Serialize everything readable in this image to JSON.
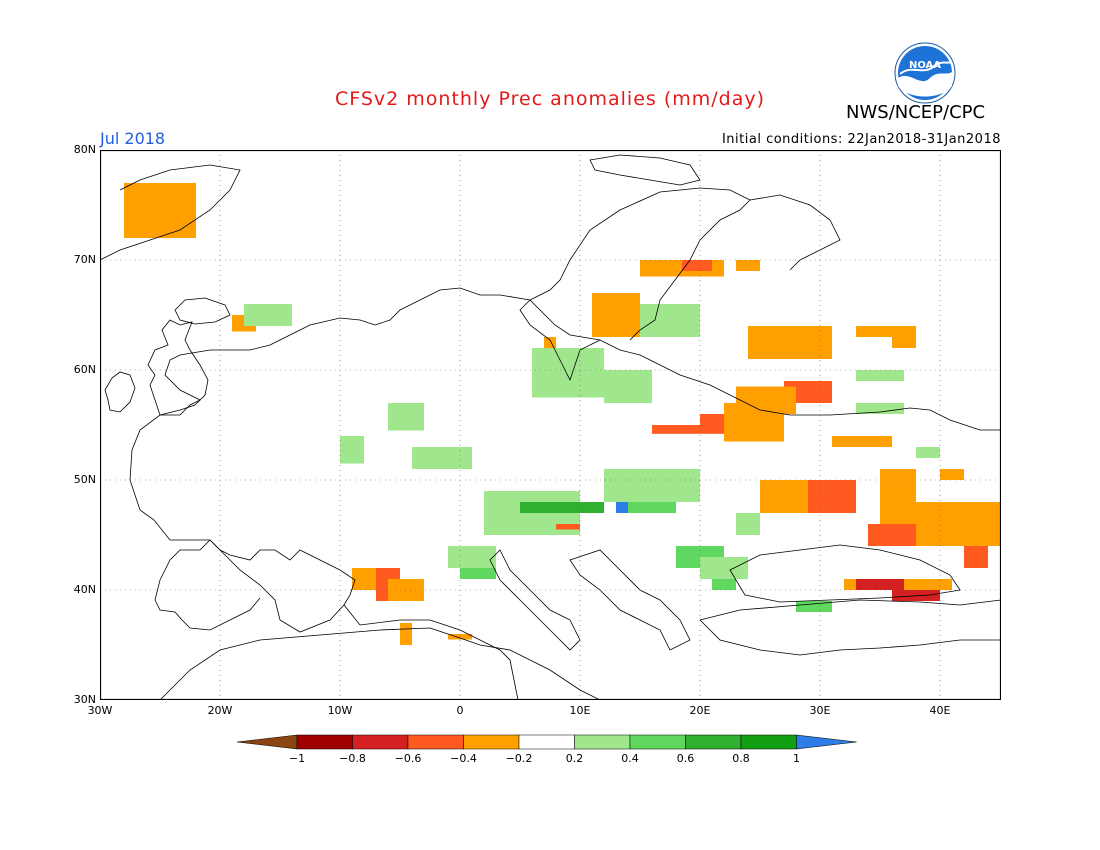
{
  "header": {
    "title": "CFSv2 monthly Prec anomalies (mm/day)",
    "agency": "NWS/NCEP/CPC",
    "logo_text": "NOAA",
    "month": "Jul 2018",
    "initial_conditions": "Initial conditions: 22Jan2018-31Jan2018"
  },
  "map": {
    "lon_range": [
      -30,
      45
    ],
    "lat_range": [
      30,
      80
    ],
    "lat_labels": [
      "80N",
      "70N",
      "60N",
      "50N",
      "40N",
      "30N"
    ],
    "lon_labels": [
      "30W",
      "20W",
      "10W",
      "0",
      "10E",
      "20E",
      "30E",
      "40E"
    ],
    "grid": "dotted"
  },
  "legend": {
    "ticks": [
      "-1",
      "-0.8",
      "-0.6",
      "-0.4",
      "-0.2",
      "0.2",
      "0.4",
      "0.6",
      "0.8",
      "1"
    ],
    "colors": {
      "lt_-1": "#8b4513",
      "-1_-0.8": "#a00000",
      "-0.8_-0.6": "#d42020",
      "-0.6_-0.4": "#ff5a1f",
      "-0.4_-0.2": "#ffa000",
      "-0.2_0.2": "#ffffff",
      "0.2_0.4": "#a0e68c",
      "0.4_0.6": "#60d860",
      "0.6_0.8": "#30b030",
      "0.8_1": "#12a012",
      "gt_1": "#2d7de6"
    }
  },
  "anomaly_regions": [
    {
      "lon": [
        -28,
        -22
      ],
      "lat": [
        72,
        77
      ],
      "v": -0.3
    },
    {
      "lon": [
        -19,
        -17
      ],
      "lat": [
        63.5,
        65
      ],
      "v": -0.3
    },
    {
      "lon": [
        -18,
        -14
      ],
      "lat": [
        64,
        66
      ],
      "v": 0.3
    },
    {
      "lon": [
        -10,
        -8
      ],
      "lat": [
        51.5,
        54
      ],
      "v": 0.3
    },
    {
      "lon": [
        -6,
        -3
      ],
      "lat": [
        54.5,
        57
      ],
      "v": 0.3
    },
    {
      "lon": [
        -4,
        1
      ],
      "lat": [
        51,
        53
      ],
      "v": 0.3
    },
    {
      "lon": [
        7,
        11
      ],
      "lat": [
        59,
        61.5
      ],
      "v": 0.5
    },
    {
      "lon": [
        6,
        12
      ],
      "lat": [
        57.5,
        62
      ],
      "v": 0.3
    },
    {
      "lon": [
        12,
        16
      ],
      "lat": [
        57,
        60
      ],
      "v": 0.3
    },
    {
      "lon": [
        14,
        20
      ],
      "lat": [
        63,
        66
      ],
      "v": 0.3
    },
    {
      "lon": [
        7,
        8
      ],
      "lat": [
        62,
        63
      ],
      "v": -0.3
    },
    {
      "lon": [
        11,
        15
      ],
      "lat": [
        63,
        67
      ],
      "v": -0.3
    },
    {
      "lon": [
        15,
        22
      ],
      "lat": [
        68.5,
        70
      ],
      "v": -0.3
    },
    {
      "lon": [
        18.5,
        21
      ],
      "lat": [
        69,
        70
      ],
      "v": -0.5
    },
    {
      "lon": [
        23,
        25
      ],
      "lat": [
        69,
        70
      ],
      "v": -0.3
    },
    {
      "lon": [
        24,
        31
      ],
      "lat": [
        61,
        64
      ],
      "v": -0.3
    },
    {
      "lon": [
        27,
        31
      ],
      "lat": [
        57,
        59
      ],
      "v": -0.5
    },
    {
      "lon": [
        23,
        28
      ],
      "lat": [
        56,
        58.5
      ],
      "v": -0.3
    },
    {
      "lon": [
        16,
        22
      ],
      "lat": [
        54.2,
        55
      ],
      "v": -0.5
    },
    {
      "lon": [
        20,
        23
      ],
      "lat": [
        55,
        56
      ],
      "v": -0.5
    },
    {
      "lon": [
        22,
        27
      ],
      "lat": [
        53.5,
        57
      ],
      "v": -0.3
    },
    {
      "lon": [
        31,
        36
      ],
      "lat": [
        53,
        54
      ],
      "v": -0.3
    },
    {
      "lon": [
        33,
        38
      ],
      "lat": [
        63,
        64
      ],
      "v": -0.3
    },
    {
      "lon": [
        36,
        38
      ],
      "lat": [
        62,
        63
      ],
      "v": -0.3
    },
    {
      "lon": [
        33,
        37
      ],
      "lat": [
        59,
        60
      ],
      "v": 0.3
    },
    {
      "lon": [
        35,
        38
      ],
      "lat": [
        45,
        51
      ],
      "v": -0.3
    },
    {
      "lon": [
        25,
        33
      ],
      "lat": [
        47,
        50
      ],
      "v": -0.3
    },
    {
      "lon": [
        29,
        33
      ],
      "lat": [
        47,
        50
      ],
      "v": -0.5
    },
    {
      "lon": [
        34,
        38
      ],
      "lat": [
        44,
        46
      ],
      "v": -0.5
    },
    {
      "lon": [
        38,
        45
      ],
      "lat": [
        44,
        48
      ],
      "v": -0.3
    },
    {
      "lon": [
        42,
        44
      ],
      "lat": [
        42,
        44
      ],
      "v": -0.5
    },
    {
      "lon": [
        32,
        41
      ],
      "lat": [
        40,
        41
      ],
      "v": -0.3
    },
    {
      "lon": [
        33,
        37
      ],
      "lat": [
        40,
        41
      ],
      "v": -0.7
    },
    {
      "lon": [
        36,
        40
      ],
      "lat": [
        39,
        40
      ],
      "v": -0.7
    },
    {
      "lon": [
        -7,
        -5
      ],
      "lat": [
        39,
        42
      ],
      "v": -0.5
    },
    {
      "lon": [
        -9,
        -7
      ],
      "lat": [
        40,
        42
      ],
      "v": -0.3
    },
    {
      "lon": [
        -6,
        -3
      ],
      "lat": [
        39,
        41
      ],
      "v": -0.3
    },
    {
      "lon": [
        -5,
        -4
      ],
      "lat": [
        35,
        37
      ],
      "v": -0.3
    },
    {
      "lon": [
        -1,
        1
      ],
      "lat": [
        35.5,
        36
      ],
      "v": -0.3
    },
    {
      "lon": [
        0,
        3
      ],
      "lat": [
        41,
        43
      ],
      "v": 0.5
    },
    {
      "lon": [
        -1,
        3
      ],
      "lat": [
        42,
        44
      ],
      "v": 0.3
    },
    {
      "lon": [
        2,
        10
      ],
      "lat": [
        45,
        49
      ],
      "v": 0.3
    },
    {
      "lon": [
        5,
        12
      ],
      "lat": [
        47,
        48
      ],
      "v": 0.7
    },
    {
      "lon": [
        13,
        14
      ],
      "lat": [
        47,
        48
      ],
      "v": 1.1
    },
    {
      "lon": [
        14,
        18
      ],
      "lat": [
        47,
        49
      ],
      "v": 0.5
    },
    {
      "lon": [
        12,
        20
      ],
      "lat": [
        48,
        51
      ],
      "v": 0.3
    },
    {
      "lon": [
        8,
        10
      ],
      "lat": [
        45.5,
        46
      ],
      "v": -0.5
    },
    {
      "lon": [
        18,
        22
      ],
      "lat": [
        42,
        44
      ],
      "v": 0.5
    },
    {
      "lon": [
        20,
        24
      ],
      "lat": [
        41,
        43
      ],
      "v": 0.3
    },
    {
      "lon": [
        21,
        23
      ],
      "lat": [
        40,
        41
      ],
      "v": 0.5
    },
    {
      "lon": [
        23,
        25
      ],
      "lat": [
        45,
        47
      ],
      "v": 0.3
    },
    {
      "lon": [
        28,
        31
      ],
      "lat": [
        38,
        39
      ],
      "v": 0.5
    },
    {
      "lon": [
        38,
        40
      ],
      "lat": [
        52,
        53
      ],
      "v": 0.3
    },
    {
      "lon": [
        40,
        42
      ],
      "lat": [
        50,
        51
      ],
      "v": -0.3
    },
    {
      "lon": [
        33,
        37
      ],
      "lat": [
        56,
        57
      ],
      "v": 0.3
    }
  ]
}
